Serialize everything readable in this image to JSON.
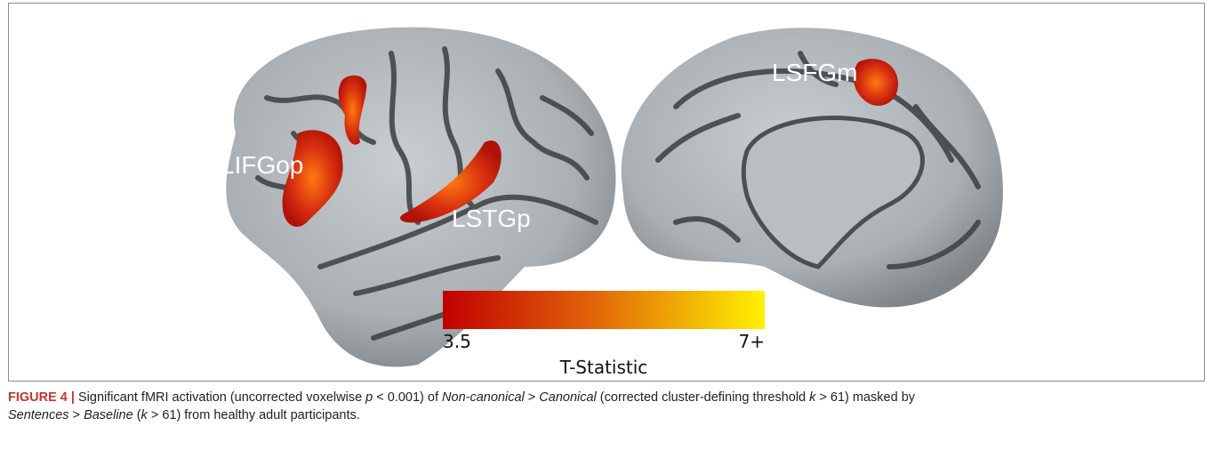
{
  "figure": {
    "regions": {
      "left": [
        "LIFGop",
        "LSTGp"
      ],
      "right": [
        "LSFGm"
      ]
    },
    "colorbar": {
      "min_label": "3.5",
      "max_label": "7+",
      "title": "T-Statistic"
    },
    "caption": {
      "label": "FIGURE 4 |",
      "segments": [
        " Significant fMRI activation (uncorrected voxelwise ",
        "p",
        " < 0.001) of ",
        "Non-canonical",
        " > ",
        "Canonical",
        " (corrected cluster-defining threshold ",
        "k",
        " > 61) masked by ",
        "Sentences",
        " > ",
        "Baseline",
        " (",
        "k",
        " > 61) from healthy adult participants."
      ]
    }
  }
}
